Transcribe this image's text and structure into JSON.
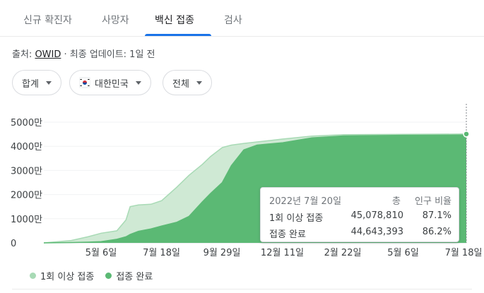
{
  "tabs": [
    {
      "label": "신규 확진자"
    },
    {
      "label": "사망자"
    },
    {
      "label": "백신 접종"
    },
    {
      "label": "검사"
    }
  ],
  "active_tab": 2,
  "source": {
    "prefix": "출처: ",
    "link": "OWID",
    "suffix": " · 최종 업데이트: 1일 전"
  },
  "filters": {
    "metric": "합계",
    "country": "대한민국",
    "scope": "전체"
  },
  "tooltip": {
    "date": "2022년 7월 20일",
    "col_total": "총",
    "col_pct": "인구 비율",
    "rows": [
      {
        "label": "1회 이상 접종",
        "total": "45,078,810",
        "pct": "87.1%"
      },
      {
        "label": "접종 완료",
        "total": "44,643,393",
        "pct": "86.2%"
      }
    ]
  },
  "legend": {
    "first_dose": "1회 이상 접종",
    "fully": "접종 완료"
  },
  "colors": {
    "first_dose": "#cfe9d4",
    "first_dose_edge": "#a8dab5",
    "fully": "#5bb974",
    "accent": "#1a73e8"
  },
  "chart_data": {
    "type": "area",
    "yticks": [
      "5000만",
      "4000만",
      "3000만",
      "2000만",
      "1000만",
      "0"
    ],
    "ytick_values": [
      50000000,
      40000000,
      30000000,
      20000000,
      10000000,
      0
    ],
    "xticks": [
      "5월 6일",
      "7월 18일",
      "9월 29일",
      "12월 11일",
      "2월 22일",
      "5월 6일",
      "7월 18일"
    ],
    "ylim": [
      0,
      50000000
    ],
    "x": [
      "2021-02-26",
      "2021-03-31",
      "2021-04-20",
      "2021-05-06",
      "2021-05-25",
      "2021-06-05",
      "2021-06-10",
      "2021-06-20",
      "2021-07-05",
      "2021-07-18",
      "2021-08-05",
      "2021-08-20",
      "2021-09-05",
      "2021-09-15",
      "2021-09-29",
      "2021-10-10",
      "2021-10-25",
      "2021-11-10",
      "2021-12-11",
      "2022-01-15",
      "2022-02-22",
      "2022-05-06",
      "2022-07-20"
    ],
    "series": [
      {
        "name": "1회 이상 접종",
        "values": [
          0,
          1000000,
          2500000,
          4000000,
          5000000,
          9500000,
          15000000,
          15700000,
          16000000,
          17500000,
          23000000,
          28000000,
          32500000,
          35800000,
          39500000,
          40500000,
          41200000,
          41800000,
          43000000,
          44200000,
          44800000,
          44950000,
          45078810
        ]
      },
      {
        "name": "접종 완료",
        "values": [
          0,
          150000,
          300000,
          500000,
          1500000,
          2500000,
          3500000,
          4800000,
          5800000,
          7000000,
          8500000,
          11000000,
          17000000,
          20500000,
          25000000,
          32000000,
          38500000,
          40500000,
          41500000,
          43500000,
          44300000,
          44550000,
          44643393
        ]
      }
    ]
  }
}
